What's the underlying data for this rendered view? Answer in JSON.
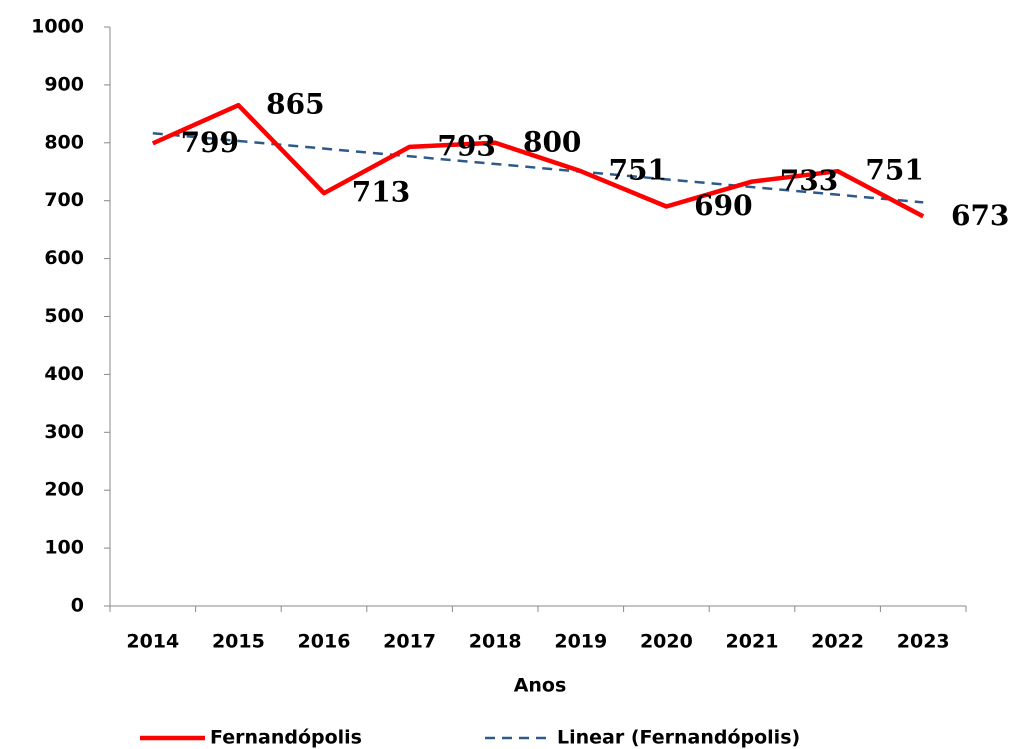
{
  "chart_data": {
    "type": "line",
    "categories": [
      "2014",
      "2015",
      "2016",
      "2017",
      "2018",
      "2019",
      "2020",
      "2021",
      "2022",
      "2023"
    ],
    "series": [
      {
        "name": "Fernandópolis",
        "color": "#ff0000",
        "values": [
          799,
          865,
          713,
          793,
          800,
          751,
          690,
          733,
          751,
          673
        ]
      }
    ],
    "trendline": {
      "kind": "linear",
      "name": "Linear (Fernandópolis)",
      "color": "#2e5a8a"
    },
    "x_label": "Anos",
    "ylim": [
      0,
      1000
    ],
    "yticks": [
      0,
      100,
      200,
      300,
      400,
      500,
      600,
      700,
      800,
      900,
      1000
    ],
    "data_labels": true,
    "legend": "bottom"
  }
}
